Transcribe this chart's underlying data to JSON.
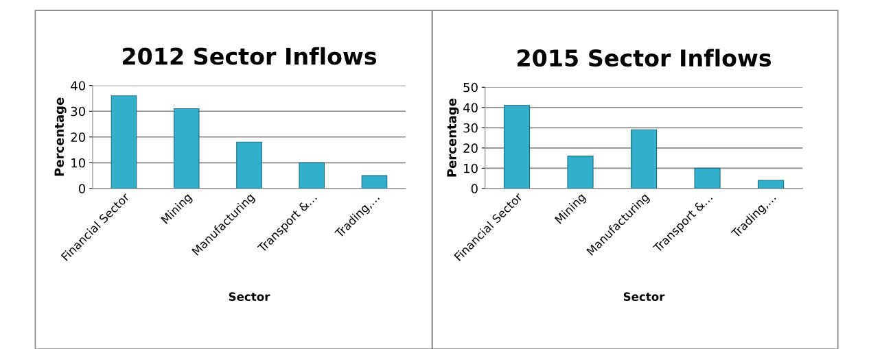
{
  "chart_data": [
    {
      "type": "bar",
      "title": "2012 Sector Inflows",
      "xlabel": "Sector",
      "ylabel": "Percentage",
      "categories": [
        "Financial Sector",
        "Mining",
        "Manufacturing",
        "Transport &…",
        "Trading,…"
      ],
      "values": [
        36,
        31,
        18,
        10,
        5
      ],
      "color": "#31afcb",
      "ylim": [
        0,
        40
      ],
      "yticks": [
        0,
        10,
        20,
        30,
        40
      ],
      "grid": "y",
      "legend": false
    },
    {
      "type": "bar",
      "title": "2015 Sector Inflows",
      "xlabel": "Sector",
      "ylabel": "Percentage",
      "categories": [
        "Financial Sector",
        "Mining",
        "Manufacturing",
        "Transport &…",
        "Trading,…"
      ],
      "values": [
        41,
        16,
        29,
        10,
        4
      ],
      "color": "#31afcb",
      "ylim": [
        0,
        50
      ],
      "yticks": [
        0,
        10,
        20,
        30,
        40,
        50
      ],
      "grid": "y",
      "legend": false
    }
  ]
}
